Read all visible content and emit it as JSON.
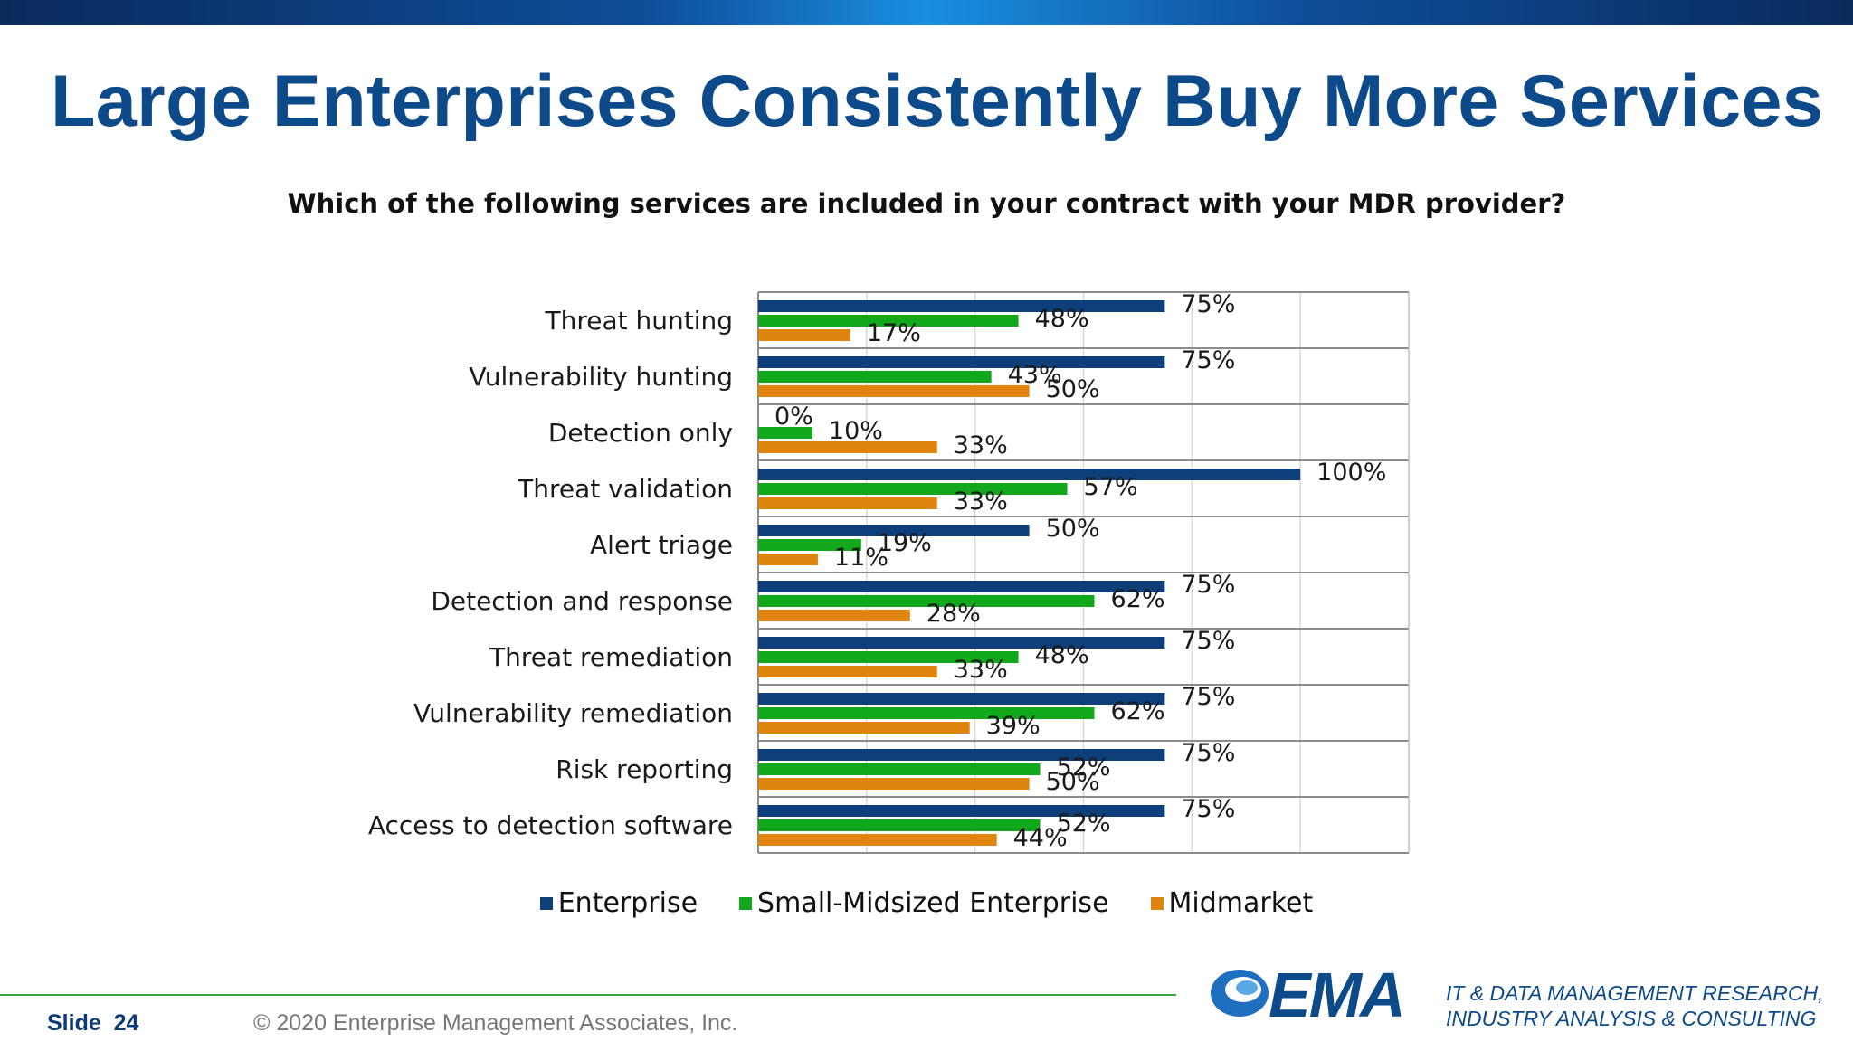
{
  "slide": {
    "title": "Large Enterprises Consistently Buy More Services",
    "question": "Which of the following services are included in your contract with your MDR provider?",
    "slide_label": "Slide",
    "slide_number": "24",
    "copyright": "© 2020  Enterprise Management Associates, Inc.",
    "logo_text": "EMA",
    "tagline_line1": "IT & DATA MANAGEMENT RESEARCH,",
    "tagline_line2": "INDUSTRY ANALYSIS & CONSULTING"
  },
  "colors": {
    "enterprise": "#0d3f7a",
    "small_midsized": "#12a81c",
    "midmarket": "#df840c",
    "title": "#0d4a8a",
    "rule": "#39a845"
  },
  "chart_data": {
    "type": "bar",
    "orientation": "horizontal",
    "categories": [
      "Threat hunting",
      "Vulnerability hunting",
      "Detection only",
      "Threat validation",
      "Alert triage",
      "Detection and response",
      "Threat remediation",
      "Vulnerability remediation",
      "Risk reporting",
      "Access to detection software"
    ],
    "series": [
      {
        "name": "Enterprise",
        "values": [
          75,
          75,
          0,
          100,
          50,
          75,
          75,
          75,
          75,
          75
        ]
      },
      {
        "name": "Small-Midsized Enterprise",
        "values": [
          48,
          43,
          10,
          57,
          19,
          62,
          48,
          62,
          52,
          52
        ]
      },
      {
        "name": "Midmarket",
        "values": [
          17,
          50,
          33,
          33,
          11,
          28,
          33,
          39,
          50,
          44
        ]
      }
    ],
    "value_suffix": "%",
    "xlim": [
      0,
      120
    ],
    "grid": true,
    "legend": "bottom"
  }
}
